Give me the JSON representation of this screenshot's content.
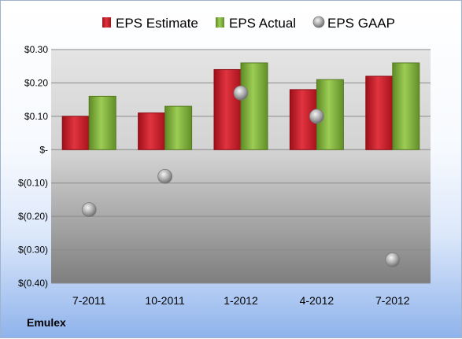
{
  "chart_data": {
    "type": "bar",
    "categories": [
      "7-2011",
      "10-2011",
      "1-2012",
      "4-2012",
      "7-2012"
    ],
    "series": [
      {
        "name": "EPS Estimate",
        "kind": "bar",
        "color": "#d0202e",
        "values": [
          0.1,
          0.11,
          0.24,
          0.18,
          0.22
        ]
      },
      {
        "name": "EPS Actual",
        "kind": "bar",
        "color": "#84b640",
        "values": [
          0.16,
          0.13,
          0.26,
          0.21,
          0.26
        ]
      },
      {
        "name": "EPS GAAP",
        "kind": "scatter",
        "color": "#b8b8b8",
        "values": [
          -0.18,
          -0.08,
          0.17,
          0.1,
          -0.33
        ]
      }
    ],
    "ylim": [
      -0.4,
      0.3
    ],
    "yticks": [
      0.3,
      0.2,
      0.1,
      0,
      -0.1,
      -0.2,
      -0.3,
      -0.4
    ],
    "ytick_labels": [
      "$0.30",
      "$0.20",
      "$0.10",
      "$-",
      "$(0.10)",
      "$(0.20)",
      "$(0.30)",
      "$(0.40)"
    ],
    "grid": true,
    "legend_position": "top"
  },
  "footer": {
    "company": "Emulex"
  }
}
